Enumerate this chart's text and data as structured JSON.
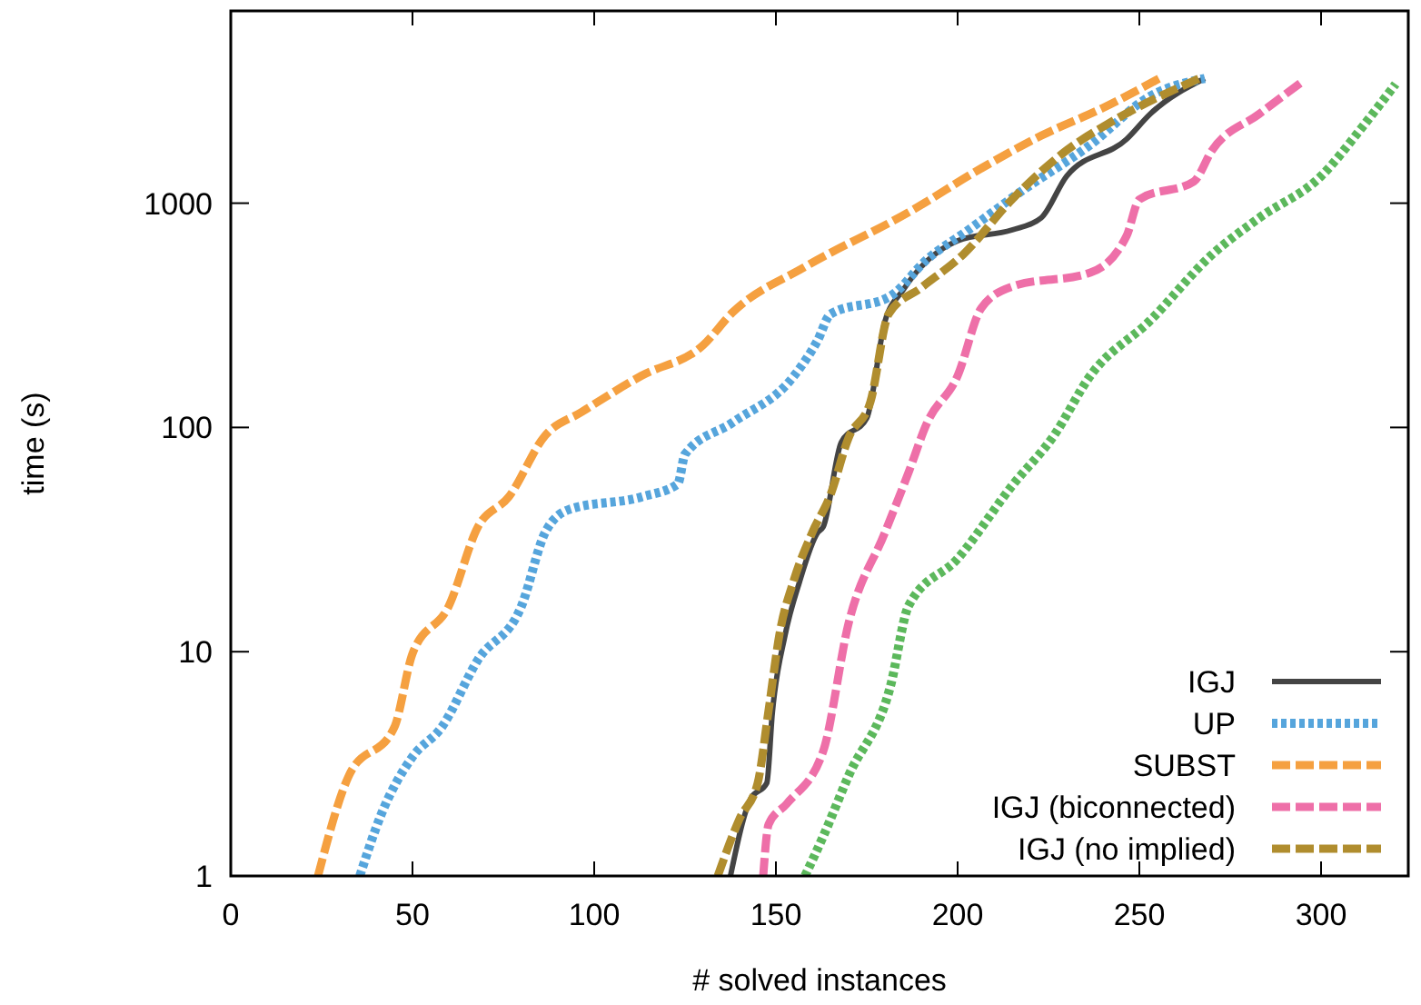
{
  "chart_data": {
    "type": "line",
    "xlabel": "# solved instances",
    "ylabel": "time (s)",
    "log": "y",
    "xlim": [
      0,
      324
    ],
    "xticks": [
      0,
      50,
      100,
      150,
      200,
      250,
      300
    ],
    "ylim": [
      1,
      7200
    ],
    "yticks": [
      1,
      10,
      100,
      1000
    ],
    "grid": false,
    "legend": "bottom right",
    "series": [
      {
        "name": "IGJ",
        "color": "#444444",
        "line_style": "solid",
        "x": [
          137.5,
          143,
          147.5,
          149,
          152.5,
          156.5,
          161.5,
          163,
          168,
          175,
          180,
          185,
          200,
          215,
          223,
          230,
          246.5,
          253,
          268
        ],
        "values": [
          1,
          2.2,
          2.6,
          5.3,
          11.8,
          20.5,
          34,
          36,
          86,
          110,
          297,
          410,
          680,
          760,
          860,
          1320,
          1930,
          2500,
          3600
        ]
      },
      {
        "name": "UP",
        "color": "#56a5dc",
        "line_style": "dotted",
        "x": [
          35.5,
          41.5,
          50,
          58,
          68,
          80,
          86.5,
          93,
          113,
          123,
          125,
          138,
          155,
          161.5,
          165,
          181.5,
          191.5,
          203,
          216.5,
          236.5,
          253,
          268
        ],
        "values": [
          1,
          1.9,
          3.4,
          4.6,
          9.2,
          16,
          34,
          43,
          49,
          56,
          76,
          105,
          170,
          245,
          320,
          385,
          560,
          760,
          1100,
          1820,
          3000,
          3600
        ]
      },
      {
        "name": "SUBST",
        "color": "#f5a040",
        "line_style": "dashed",
        "x": [
          24,
          32.5,
          45,
          50,
          60,
          68,
          76.5,
          86.5,
          96.5,
          113,
          130,
          138,
          158,
          186.5,
          206.5,
          223,
          240,
          255.5
        ],
        "values": [
          1,
          2.8,
          4.6,
          9.8,
          16,
          36,
          49,
          92,
          117,
          170,
          233,
          325,
          520,
          910,
          1430,
          2000,
          2660,
          3600
        ]
      },
      {
        "color": "#5cb85c",
        "line_style": "dotted",
        "x": [
          158,
          163,
          170,
          181.5,
          186.5,
          200,
          215,
          226.5,
          236.5,
          253,
          270,
          283,
          300,
          311.5,
          320.5
        ],
        "values": [
          1,
          1.5,
          2.8,
          7,
          16,
          26,
          55,
          92,
          170,
          300,
          590,
          860,
          1320,
          2200,
          3400
        ]
      },
      {
        "name": "IGJ (biconnected)",
        "color": "#ee6fa8",
        "line_style": "dashed",
        "x": [
          146.5,
          148,
          153,
          163,
          170,
          180,
          186.5,
          191.5,
          200,
          206.5,
          215,
          236.5,
          246.5,
          250,
          265,
          270,
          283,
          295
        ],
        "values": [
          1,
          1.7,
          2.1,
          3.6,
          13.4,
          34,
          63,
          104,
          170,
          340,
          425,
          490,
          715,
          1040,
          1250,
          1720,
          2500,
          3500
        ]
      },
      {
        "name": "IGJ (no implied)",
        "color": "#b08d2e",
        "line_style": "dashed",
        "x": [
          134,
          140,
          145,
          148,
          151,
          155,
          160,
          165,
          170,
          176,
          181,
          190,
          201.5,
          215,
          230,
          243,
          266.5
        ],
        "values": [
          1,
          1.8,
          2.6,
          5.5,
          12,
          21,
          34,
          50,
          90,
          130,
          320,
          420,
          590,
          1040,
          1720,
          2340,
          3600
        ]
      }
    ]
  }
}
